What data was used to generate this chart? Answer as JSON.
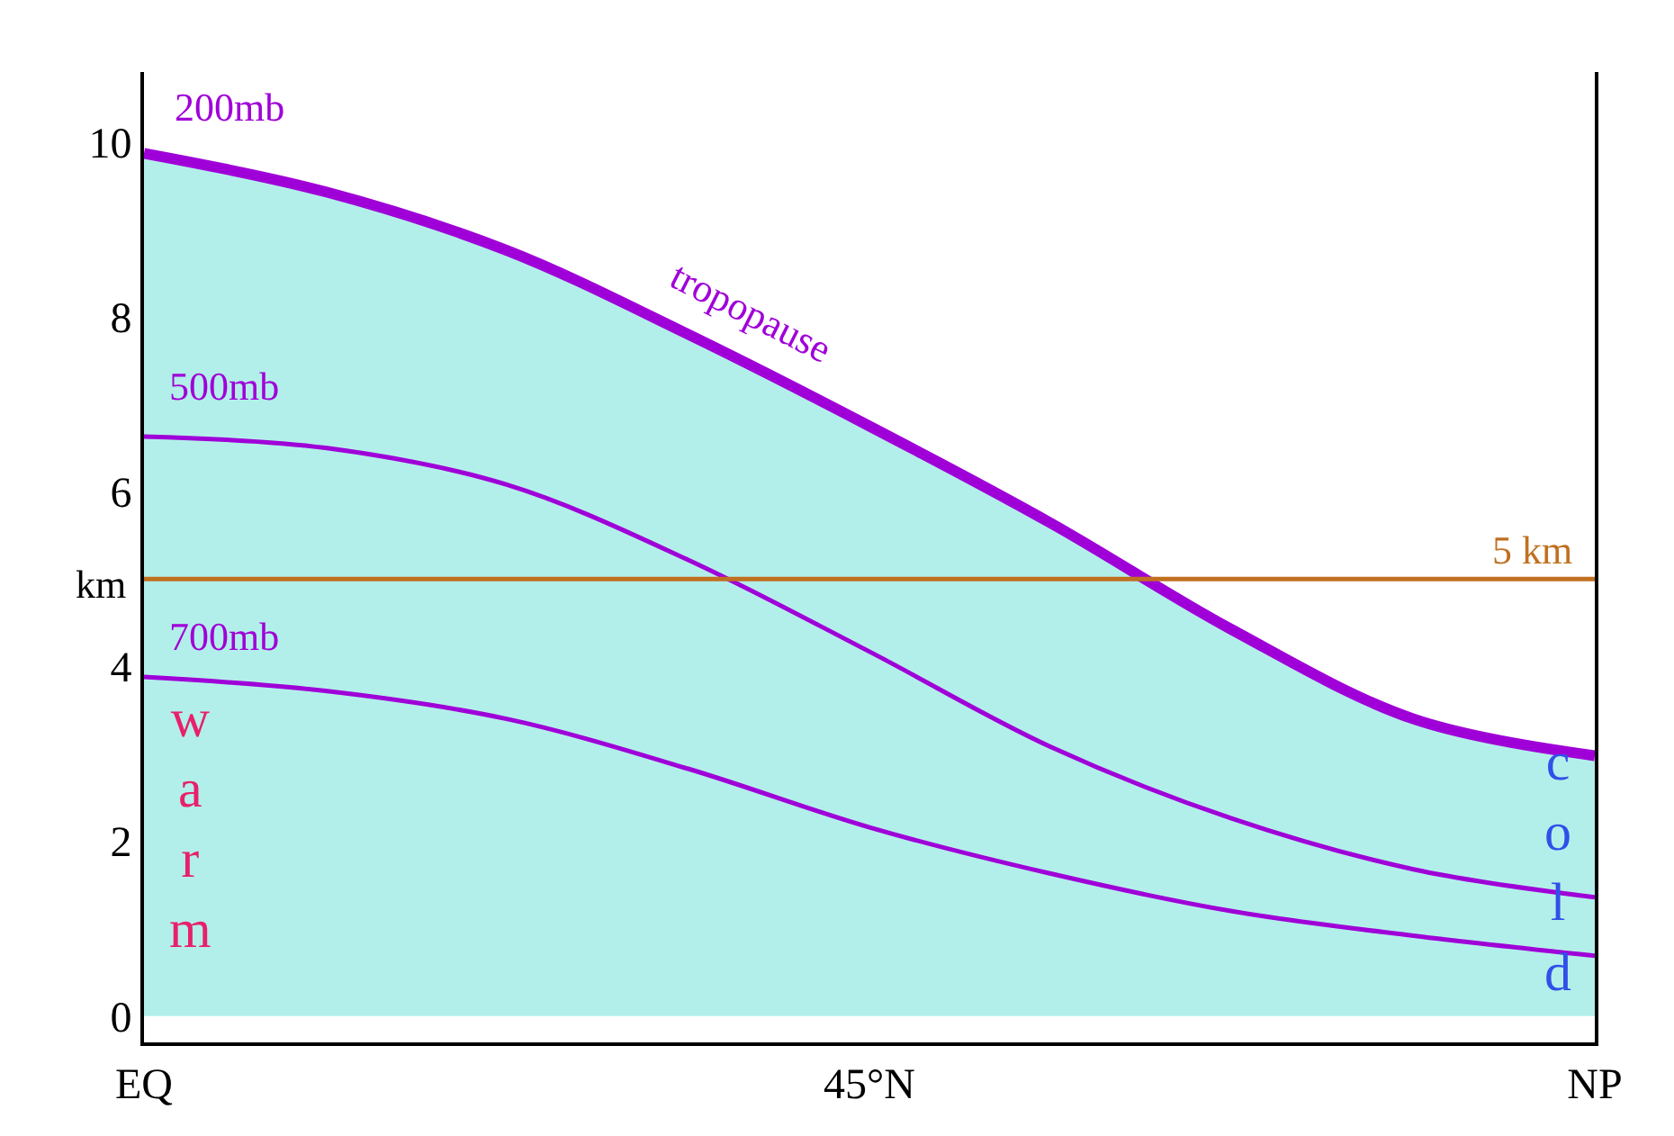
{
  "chart_data": {
    "type": "line",
    "ylabel": "km",
    "categories": [
      "EQ",
      null,
      null,
      null,
      "45°N",
      null,
      null,
      null,
      "NP"
    ],
    "series": [
      {
        "type": "area",
        "color": "#b3efea",
        "values": [
          9.87,
          9.43,
          8.76,
          7.8,
          6.75,
          5.64,
          4.42,
          3.4,
          2.98
        ]
      },
      {
        "color": "#a000d8",
        "values": [
          9.87,
          9.43,
          8.76,
          7.8,
          6.75,
          5.64,
          4.42,
          3.4,
          2.98
        ]
      },
      {
        "color": "#a000d8",
        "values": [
          6.63,
          6.5,
          6.08,
          5.22,
          4.17,
          3.08,
          2.26,
          1.68,
          1.36
        ]
      },
      {
        "color": "#a000d8",
        "values": [
          3.88,
          3.72,
          3.4,
          2.83,
          2.16,
          1.63,
          1.2,
          0.92,
          0.69
        ]
      }
    ],
    "ref_lines": [
      {
        "axis": "y",
        "value": 5,
        "label": "5 km",
        "color": "#c07020"
      }
    ],
    "annotations": [
      "200mb",
      "tropopause",
      "500mb",
      "700mb",
      "warm",
      "cold"
    ],
    "ylim": [
      -0.3,
      10.8
    ],
    "yticks": [
      0,
      2,
      4,
      6,
      8,
      10
    ]
  }
}
